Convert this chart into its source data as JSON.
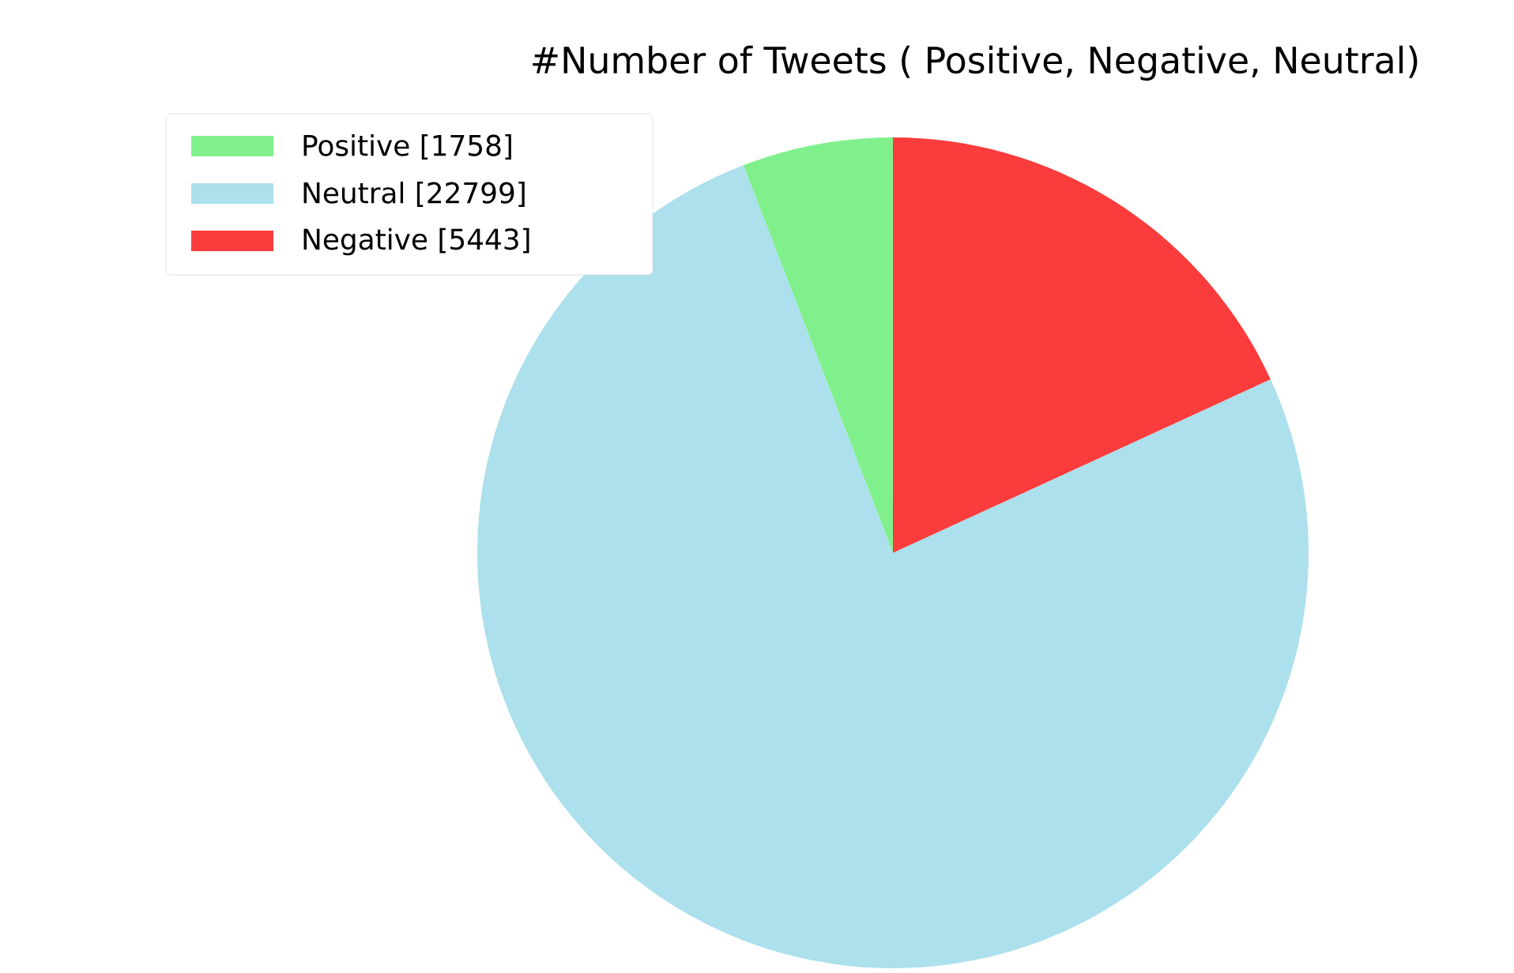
{
  "chart_data": {
    "type": "pie",
    "title": "#Number of Tweets ( Positive, Negative, Neutral)",
    "categories": [
      "Positive [1758]",
      "Neutral [22799]",
      "Negative [5443]"
    ],
    "values": [
      1758,
      22799,
      5443
    ],
    "colors": [
      "#80f08c",
      "#abe0ec",
      "#fa3c3c"
    ],
    "legend": "top left"
  }
}
